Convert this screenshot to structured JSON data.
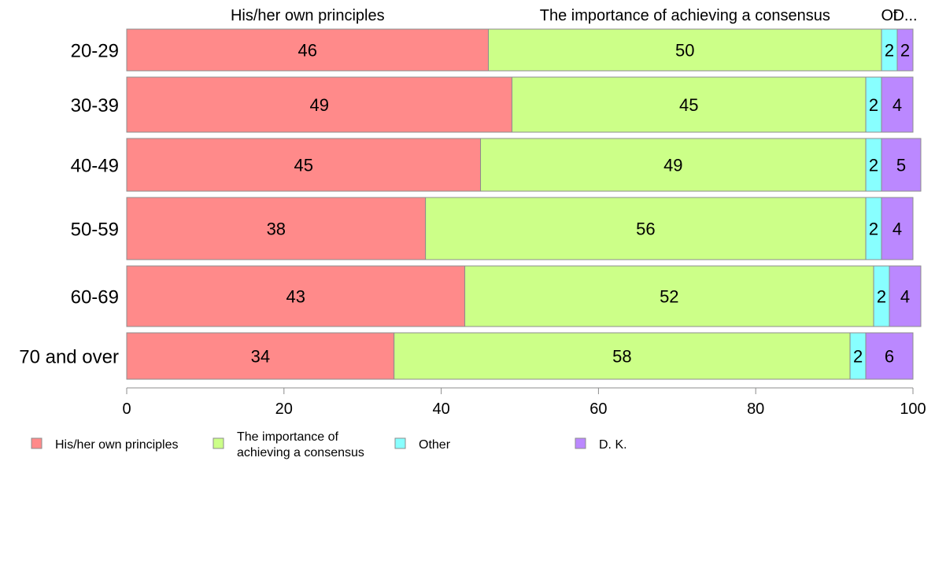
{
  "chart_data": {
    "type": "bar",
    "orientation": "horizontal",
    "stacked": true,
    "categories": [
      "20-29",
      "30-39",
      "40-49",
      "50-59",
      "60-69",
      "70 and over"
    ],
    "series": [
      {
        "name": "His/her own principles",
        "values": [
          46,
          49,
          45,
          38,
          43,
          34
        ],
        "color": "#FF8A8A"
      },
      {
        "name": "The importance of achieving a consensus",
        "values": [
          50,
          45,
          49,
          56,
          52,
          58
        ],
        "color": "#CCFF88"
      },
      {
        "name": "Other",
        "values": [
          2,
          2,
          2,
          2,
          2,
          2
        ],
        "color": "#88FFFF"
      },
      {
        "name": "D. K.",
        "values": [
          2,
          4,
          5,
          4,
          4,
          6
        ],
        "color": "#BB88FF"
      }
    ],
    "top_labels": [
      "His/her own principles",
      "The importance of achieving a consensus",
      "Ot",
      "D..."
    ],
    "legend_labels": [
      "His/her own principles",
      "The importance of\nachieving a consensus",
      "Other",
      "D. K."
    ],
    "xlim": [
      0,
      100
    ],
    "xticks": [
      0,
      20,
      40,
      60,
      80,
      100
    ],
    "grid": false,
    "legend_position": "bottom"
  }
}
